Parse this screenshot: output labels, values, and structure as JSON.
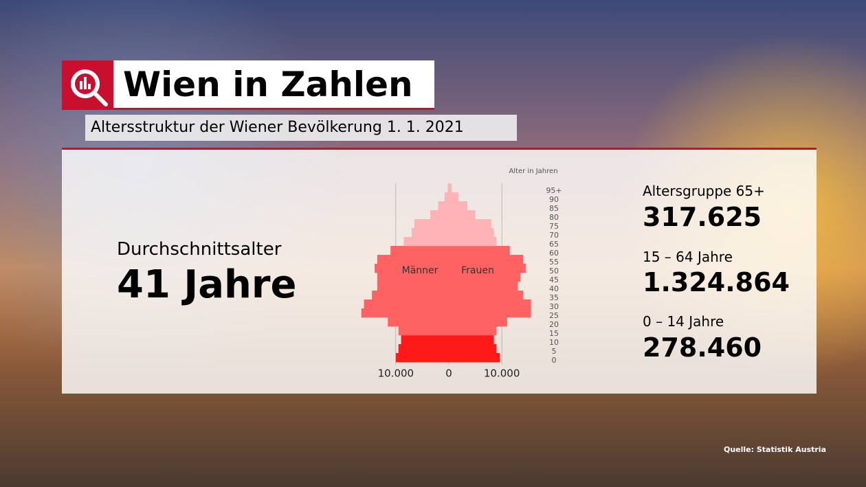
{
  "header": {
    "title": "Wien in Zahlen",
    "subtitle": "Altersstruktur der Wiener Bevölkerung 1. 1. 2021"
  },
  "average": {
    "label": "Durchschnittsalter",
    "value": "41 Jahre"
  },
  "stats": [
    {
      "label": "Altersgruppe 65+",
      "value": "317.625"
    },
    {
      "label": "15 – 64 Jahre",
      "value": "1.324.864"
    },
    {
      "label": "0 – 14 Jahre",
      "value": "278.460"
    }
  ],
  "source": "Quelle: Statistik Austria",
  "chart_data": {
    "type": "pyramid",
    "y_label": "Alter in Jahren",
    "categories": [
      "0",
      "5",
      "10",
      "15",
      "20",
      "25",
      "30",
      "35",
      "40",
      "45",
      "50",
      "55",
      "60",
      "65",
      "70",
      "75",
      "80",
      "85",
      "90",
      "95+"
    ],
    "series": [
      {
        "name": "Männer",
        "side": "left",
        "values": [
          10000,
          9500,
          9000,
          9500,
          11500,
          16500,
          16000,
          14500,
          13500,
          13500,
          14000,
          13500,
          11000,
          8500,
          7000,
          6500,
          3500,
          2000,
          800,
          200
        ],
        "colors": [
          "#ff1a1a",
          "#ff1a1a",
          "#ff1a1a",
          "#ff6262",
          "#ff6262",
          "#ff6262",
          "#ff6262",
          "#ff6262",
          "#ff6262",
          "#ff6262",
          "#ff6262",
          "#ff6262",
          "#ff6262",
          "#ffb3b6",
          "#ffb3b6",
          "#ffb3b6",
          "#ffb3b6",
          "#ffb3b6",
          "#ffb3b6",
          "#ffb3b6"
        ]
      },
      {
        "name": "Frauen",
        "side": "right",
        "values": [
          9600,
          9000,
          8500,
          9000,
          11000,
          15500,
          15500,
          14000,
          13000,
          13500,
          14500,
          14000,
          11500,
          9000,
          8500,
          8000,
          5000,
          3500,
          1800,
          500
        ],
        "colors": [
          "#ff1a1a",
          "#ff1a1a",
          "#ff1a1a",
          "#ff6262",
          "#ff6262",
          "#ff6262",
          "#ff6262",
          "#ff6262",
          "#ff6262",
          "#ff6262",
          "#ff6262",
          "#ff6262",
          "#ff6262",
          "#ffb3b6",
          "#ffb3b6",
          "#ffb3b6",
          "#ffb3b6",
          "#ffb3b6",
          "#ffb3b6",
          "#ffb3b6"
        ]
      }
    ],
    "xlim": [
      -17500,
      17500
    ],
    "xticks": [
      {
        "value": -10000,
        "label": "10.000"
      },
      0,
      {
        "value": 10000,
        "label": "10.000"
      }
    ],
    "grid": true
  }
}
